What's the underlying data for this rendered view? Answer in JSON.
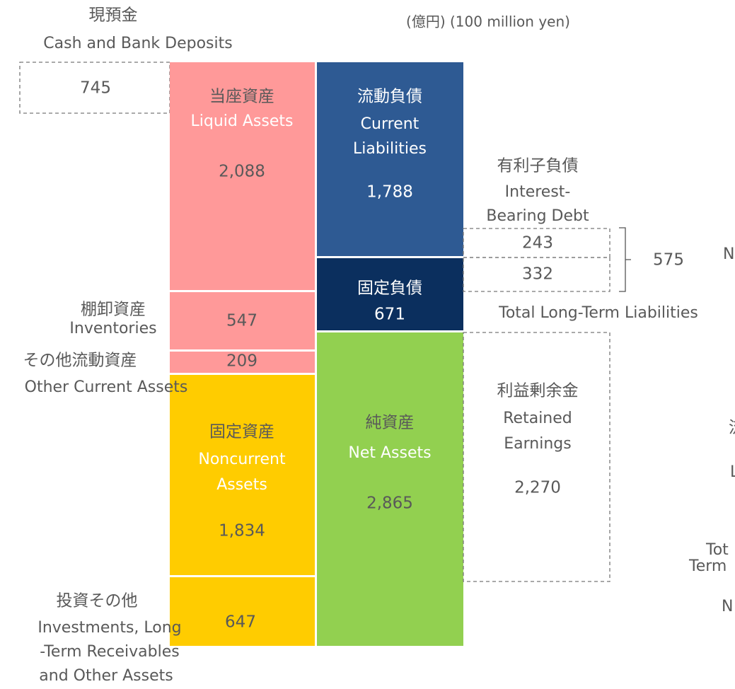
{
  "unit_note": "(億円) (100 million yen)",
  "cash": {
    "label_jp": "現預金",
    "label_en": "Cash and Bank Deposits",
    "value": "745"
  },
  "assets": {
    "liquid": {
      "label_jp": "当座資産",
      "label_en": "Liquid Assets",
      "value": "2,088"
    },
    "inventories": {
      "label_jp": "棚卸資産",
      "label_en": "Inventories",
      "value": "547"
    },
    "other_current": {
      "label_jp": "その他流動資産",
      "label_en": "Other Current Assets",
      "value": "209"
    },
    "noncurrent": {
      "label_jp": "固定資産",
      "label_en_lines": [
        "Noncurrent",
        "Assets"
      ],
      "value": "1,834"
    },
    "investments": {
      "label_jp": "投資その他",
      "label_en_lines": [
        "Investments, Long",
        "-Term Receivables",
        " and Other Assets"
      ],
      "value": "647"
    }
  },
  "liabilities": {
    "current": {
      "label_jp": "流動負債",
      "label_en_lines": [
        "Current",
        "Liabilities"
      ],
      "value": "1,788"
    },
    "long_term": {
      "label_jp": "固定負債",
      "value": "671"
    },
    "net_assets": {
      "label_jp": "純資産",
      "label_en": "Net Assets",
      "value": "2,865"
    }
  },
  "interest_bearing": {
    "label_jp": "有利子負債",
    "label_en_lines": [
      "Interest-",
      "Bearing Debt"
    ],
    "values": [
      "243",
      "332"
    ],
    "total": "575"
  },
  "total_long_term_label": "Total Long-Term Liabilities",
  "retained": {
    "label_jp": "利益剰余金",
    "label_en_lines": [
      "Retained",
      "Earnings"
    ],
    "value": "2,270"
  },
  "cut_off_fragments": [
    "N",
    "流",
    "L",
    "Tot",
    "Term",
    "N"
  ]
}
